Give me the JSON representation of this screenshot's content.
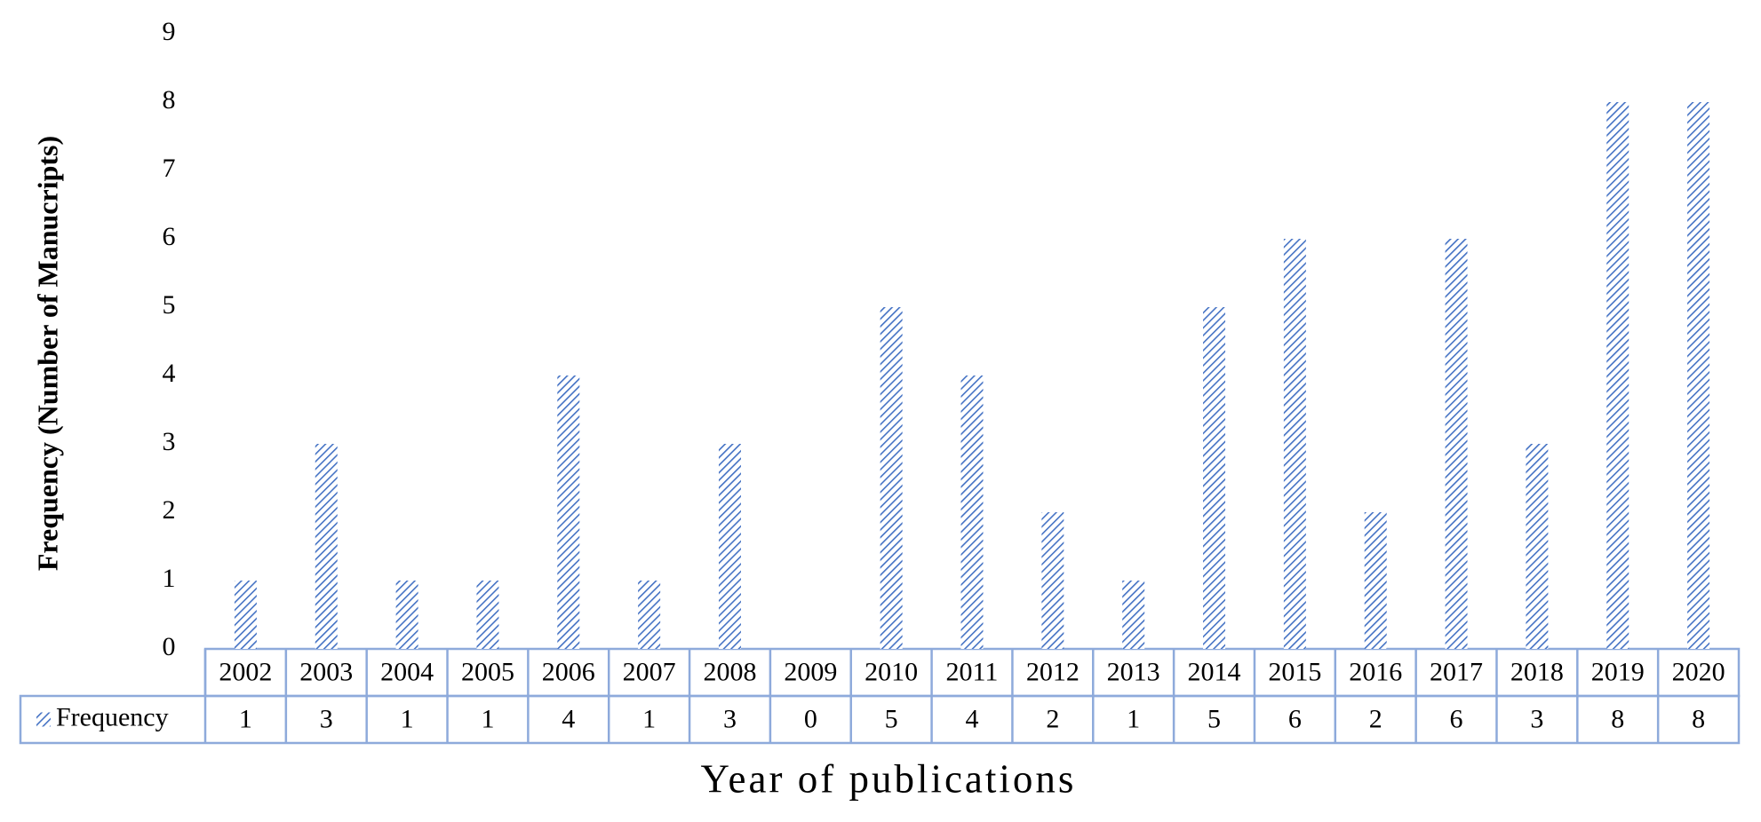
{
  "chart_data": {
    "type": "bar",
    "categories": [
      "2002",
      "2003",
      "2004",
      "2005",
      "2006",
      "2007",
      "2008",
      "2009",
      "2010",
      "2011",
      "2012",
      "2013",
      "2014",
      "2015",
      "2016",
      "2017",
      "2018",
      "2019",
      "2020"
    ],
    "series": [
      {
        "name": "Frequency",
        "color": "#4472c4",
        "values": [
          1,
          3,
          1,
          1,
          4,
          1,
          3,
          0,
          5,
          4,
          2,
          1,
          5,
          6,
          2,
          6,
          3,
          8,
          8
        ]
      }
    ],
    "ylim": [
      0,
      9
    ],
    "yticks": [
      0,
      1,
      2,
      3,
      4,
      5,
      6,
      7,
      8,
      9
    ],
    "y_label": "Frequency (Number of Manucripts)",
    "x_label": "Year of publications",
    "grid": false
  }
}
